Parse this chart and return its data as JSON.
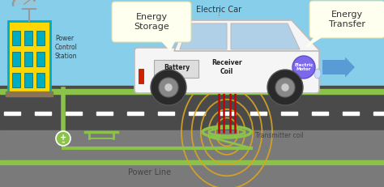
{
  "bg_sky_color": "#87CEEB",
  "bg_road_color": "#4A4A4A",
  "bg_underground_color": "#7A7A7A",
  "bg_ground_strip_color": "#8BC34A",
  "road_dash_color": "#FFFFFF",
  "building_color": "#FFD700",
  "building_outline": "#00ACC1",
  "antenna_color": "#999999",
  "power_line_color": "#8BC34A",
  "transmitter_coil_color": "#8BC34A",
  "magnetic_field_color": "#DAA520",
  "receiver_lines_color": "#CC0000",
  "car_body_color": "#F5F5F5",
  "car_outline_color": "#BBBBBB",
  "car_window_color": "#B0D0E8",
  "wheel_color": "#2A2A2A",
  "wheel_rim_color": "#DDDDDD",
  "receiver_coil_color": "#2E7D32",
  "energy_storage_bg": "#FFFFF0",
  "energy_transfer_bg": "#FFFFF0",
  "energy_arrow_color": "#5B9BD5",
  "label_color": "#333333",
  "title_text": "Energy\nStorage",
  "subtitle_text": "Electric Car",
  "transfer_text": "Energy\nTransfer",
  "power_control_text": "Power\nControl\nStation",
  "battery_text": "Battery",
  "receiver_coil_text": "Receiver\nCoil",
  "electric_motor_text": "Electric\nMotor",
  "transmitter_coil_text": "Transmitter coil",
  "power_line_text": "Power Line",
  "figsize": [
    4.74,
    2.31
  ],
  "dpi": 100
}
